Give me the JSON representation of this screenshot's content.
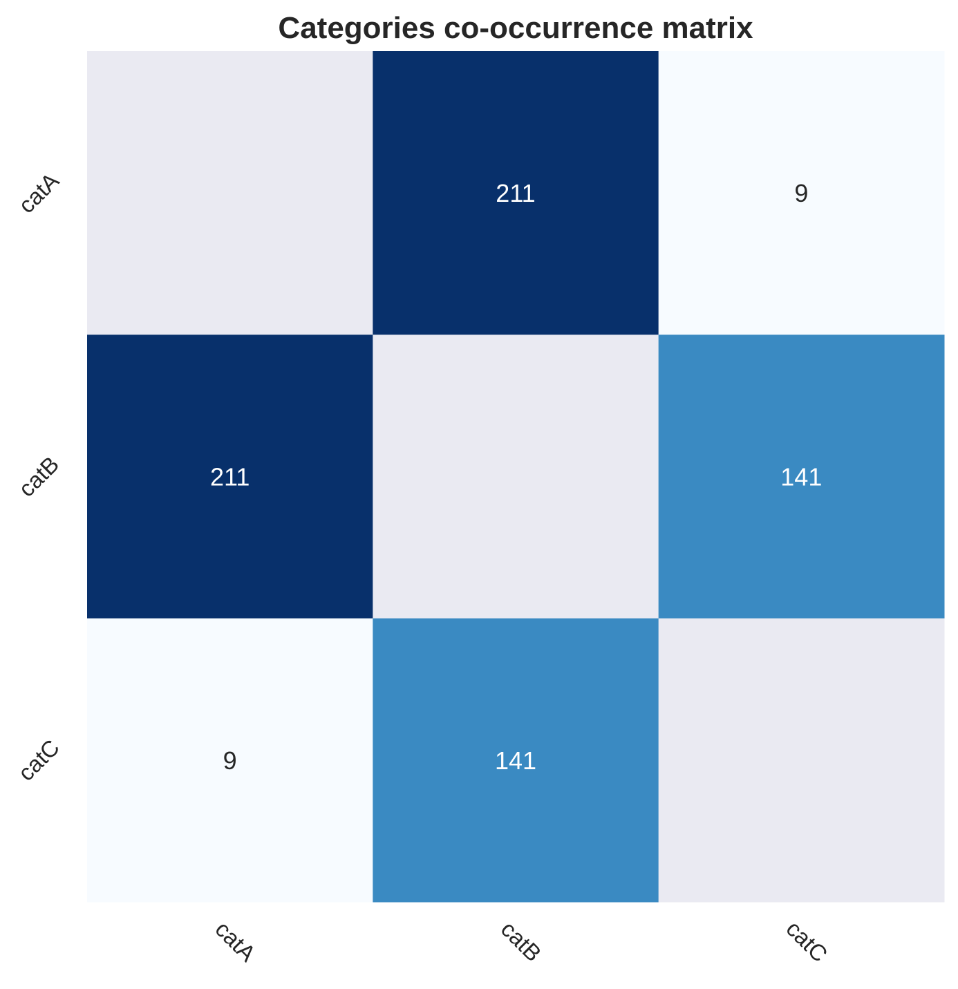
{
  "chart_data": {
    "type": "heatmap",
    "title": "Categories co-occurrence matrix",
    "x_categories": [
      "catA",
      "catB",
      "catC"
    ],
    "y_categories": [
      "catA",
      "catB",
      "catC"
    ],
    "values": [
      [
        null,
        211,
        9
      ],
      [
        211,
        null,
        141
      ],
      [
        9,
        141,
        null
      ]
    ],
    "masked_color": "#eaeaf2",
    "colormap": "Blues",
    "color_range": [
      9,
      211
    ],
    "tick_rotation_deg": 45,
    "colorbar": false,
    "grid": false
  }
}
